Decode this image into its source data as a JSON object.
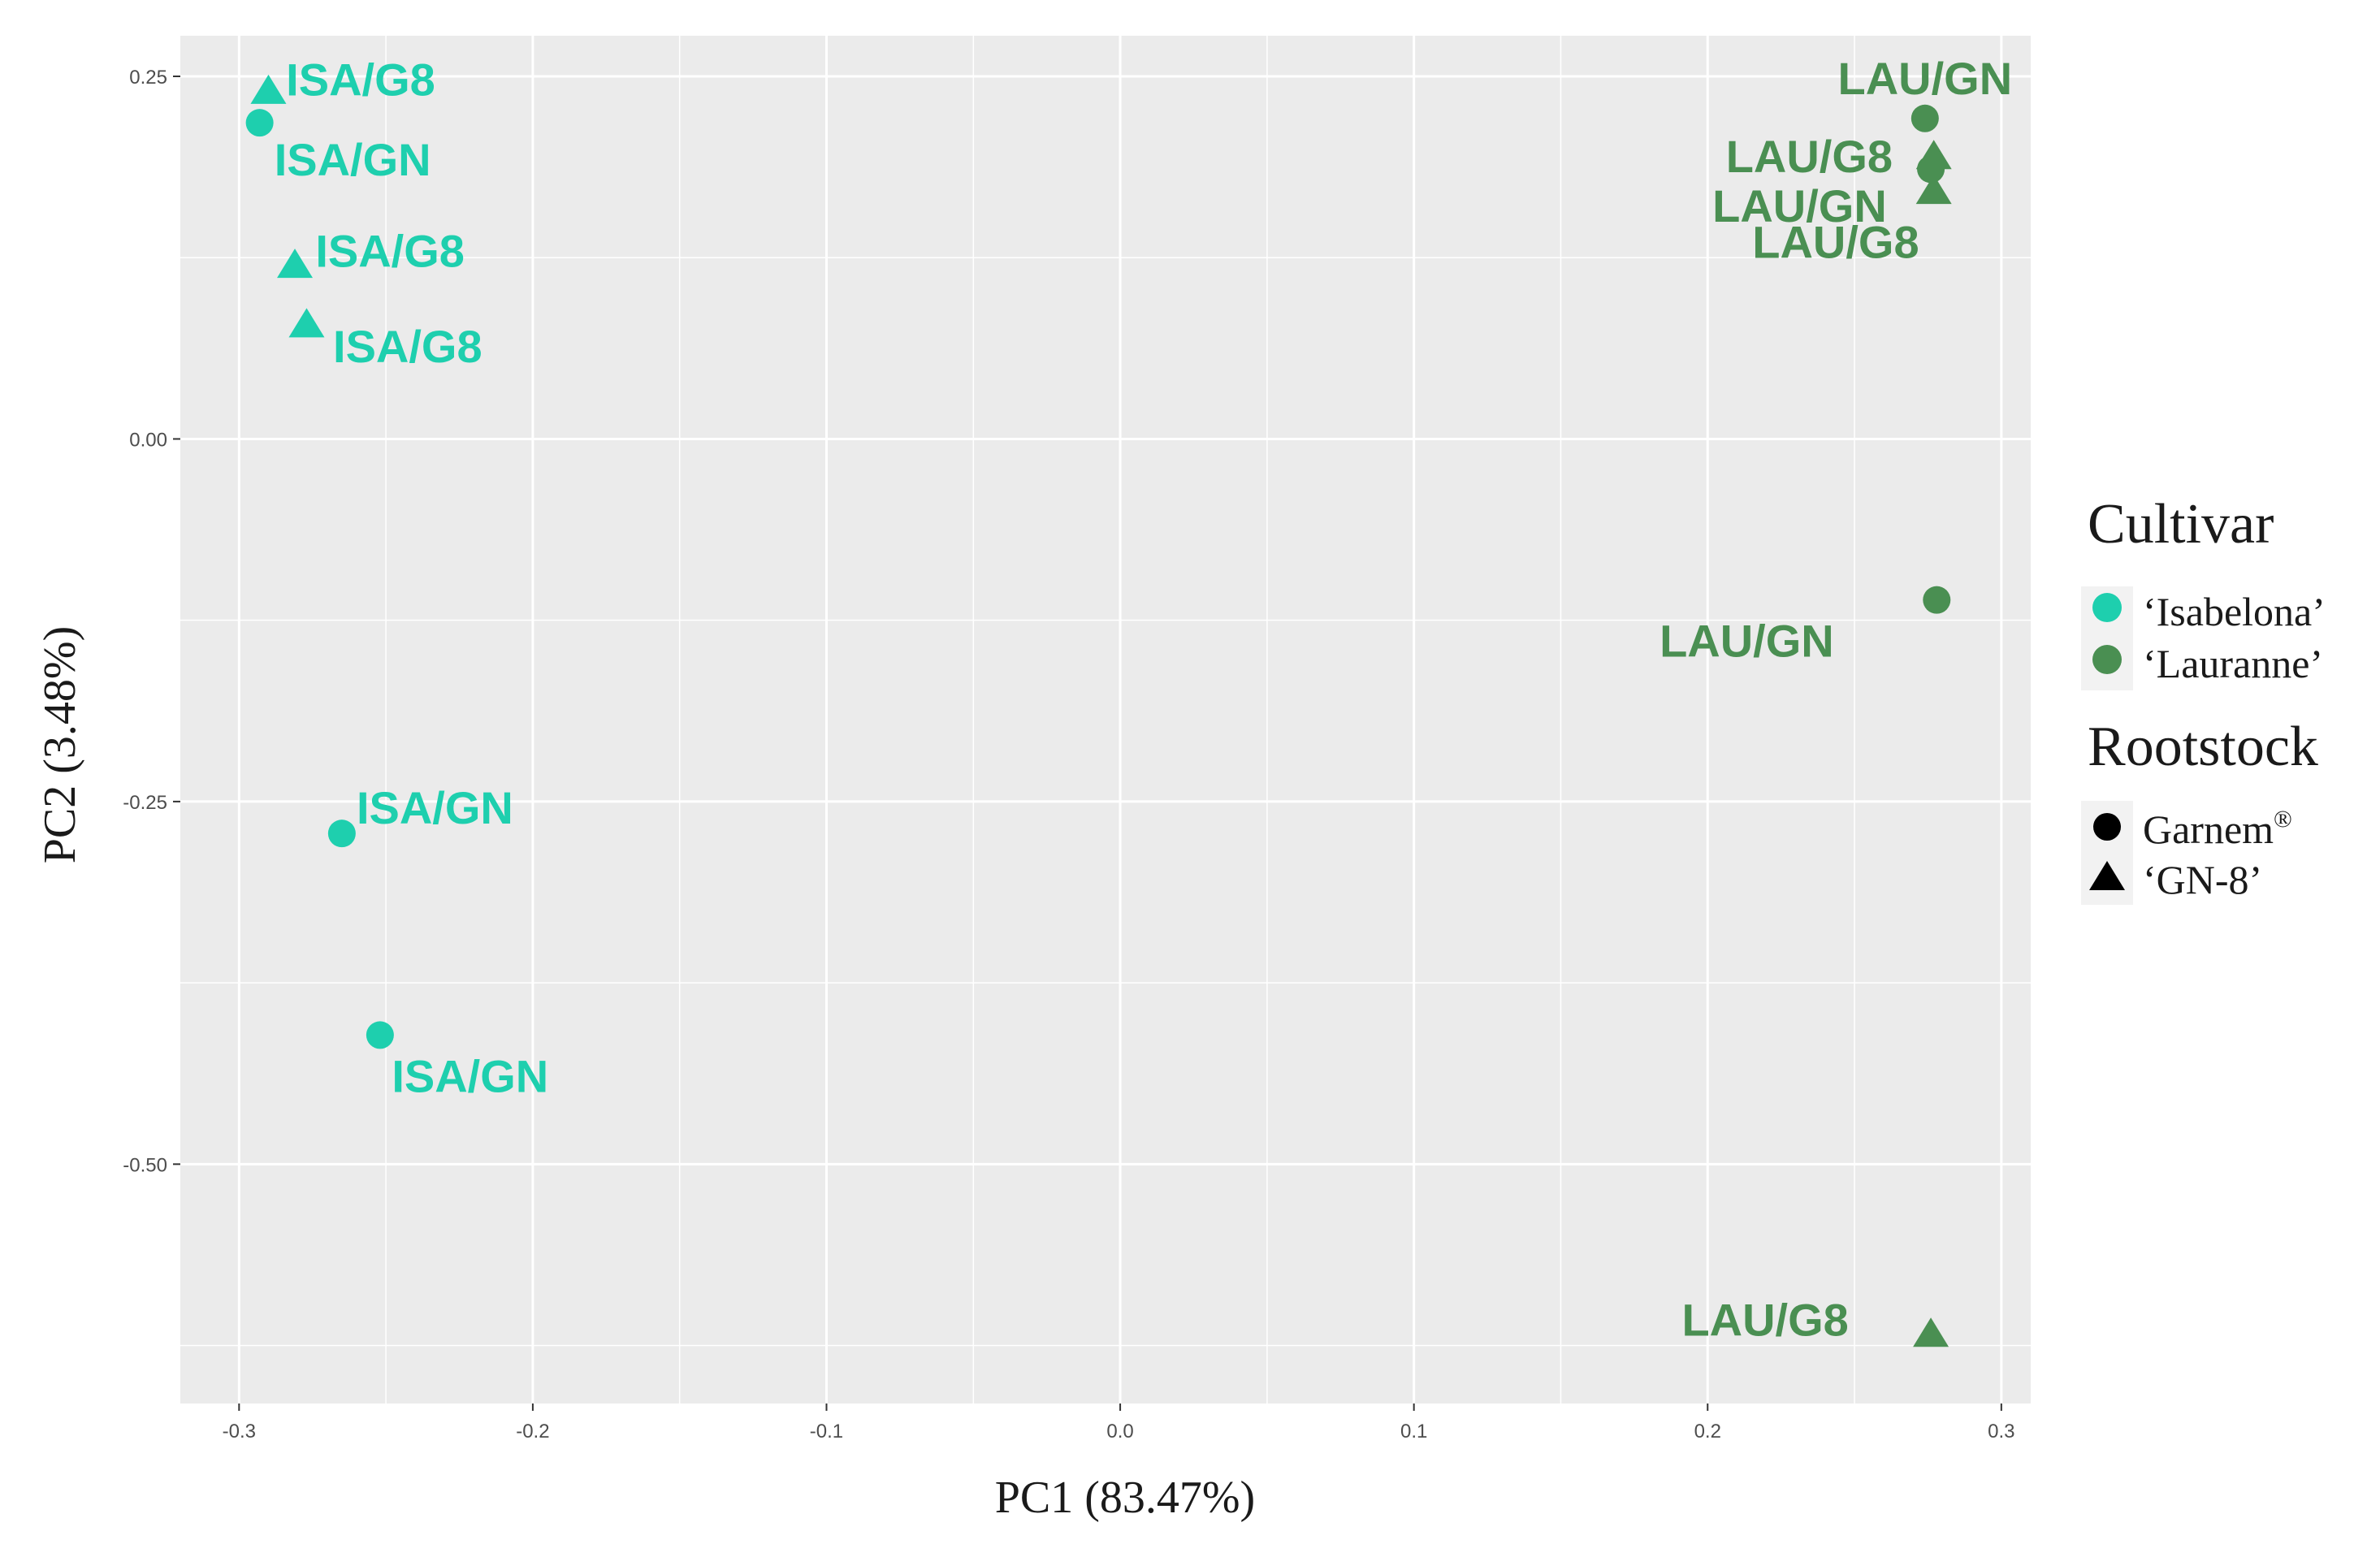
{
  "chart_data": {
    "type": "scatter",
    "xlabel": "PC1 (83.47%)",
    "ylabel": "PC2 (3.48%)",
    "xlim": [
      -0.32,
      0.31
    ],
    "ylim": [
      -0.665,
      0.278
    ],
    "x_ticks": [
      -0.3,
      -0.2,
      -0.1,
      0.0,
      0.1,
      0.2,
      0.3
    ],
    "x_tick_labels": [
      "-0.3",
      "-0.2",
      "-0.1",
      "0.0",
      "0.1",
      "0.2",
      "0.3"
    ],
    "y_ticks": [
      0.25,
      0.0,
      -0.25,
      -0.5
    ],
    "y_tick_labels": [
      "0.25",
      "0.00",
      "-0.25",
      "-0.50"
    ],
    "grid": true,
    "legend_position": "right",
    "colors": {
      "Isabelona": "#1ecfae",
      "Lauranne": "#4a8f52",
      "panel": "#ebebeb",
      "grid": "#ffffff"
    },
    "legend": {
      "cultivar_title": "Cultivar",
      "cultivar_items": [
        {
          "label": "‘Isabelona’",
          "color": "#1ecfae"
        },
        {
          "label": "‘Lauranne’",
          "color": "#4a8f52"
        }
      ],
      "rootstock_title": "Rootstock",
      "rootstock_items": [
        {
          "label": "Garnem",
          "sup": "®",
          "shape": "circle"
        },
        {
          "label": "‘GN-8’",
          "sup": "",
          "shape": "triangle"
        }
      ]
    },
    "points": [
      {
        "x": -0.293,
        "y": 0.218,
        "cultivar": "Isabelona",
        "rootstock": "circle",
        "label": "ISA/GN",
        "dx": 0.005,
        "dy": -0.025
      },
      {
        "x": -0.29,
        "y": 0.24,
        "cultivar": "Isabelona",
        "rootstock": "triangle",
        "label": "ISA/G8",
        "dx": 0.006,
        "dy": 0.008
      },
      {
        "x": -0.281,
        "y": 0.12,
        "cultivar": "Isabelona",
        "rootstock": "triangle",
        "label": "ISA/G8",
        "dx": 0.007,
        "dy": 0.01
      },
      {
        "x": -0.277,
        "y": 0.079,
        "cultivar": "Isabelona",
        "rootstock": "triangle",
        "label": "ISA/G8",
        "dx": 0.009,
        "dy": -0.015
      },
      {
        "x": -0.265,
        "y": -0.272,
        "cultivar": "Isabelona",
        "rootstock": "circle",
        "label": "ISA/GN",
        "dx": 0.005,
        "dy": 0.018
      },
      {
        "x": -0.252,
        "y": -0.411,
        "cultivar": "Isabelona",
        "rootstock": "circle",
        "label": "ISA/GN",
        "dx": 0.004,
        "dy": -0.028
      },
      {
        "x": 0.274,
        "y": 0.221,
        "cultivar": "Lauranne",
        "rootstock": "circle",
        "label": "LAU/GN",
        "dx": 0.0,
        "dy": 0.028
      },
      {
        "x": 0.277,
        "y": 0.195,
        "cultivar": "Lauranne",
        "rootstock": "triangle",
        "label": "LAU/G8",
        "dx": -0.014,
        "dy": 0.0
      },
      {
        "x": 0.276,
        "y": 0.186,
        "cultivar": "Lauranne",
        "rootstock": "circle",
        "label": "LAU/GN",
        "dx": -0.015,
        "dy": -0.025
      },
      {
        "x": 0.277,
        "y": 0.171,
        "cultivar": "Lauranne",
        "rootstock": "triangle",
        "label": "LAU/G8",
        "dx": -0.005,
        "dy": -0.035
      },
      {
        "x": 0.278,
        "y": -0.111,
        "cultivar": "Lauranne",
        "rootstock": "circle",
        "label": "LAU/GN",
        "dx": -0.035,
        "dy": -0.028
      },
      {
        "x": 0.276,
        "y": -0.617,
        "cultivar": "Lauranne",
        "rootstock": "triangle",
        "label": "LAU/G8",
        "dx": -0.028,
        "dy": 0.01
      }
    ]
  }
}
